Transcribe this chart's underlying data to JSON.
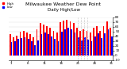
{
  "title": "Milwaukee Weather Dew Point",
  "subtitle": "Daily High/Low",
  "n_days": 31,
  "high_values": [
    45,
    38,
    42,
    50,
    52,
    48,
    44,
    38,
    55,
    68,
    65,
    62,
    58,
    52,
    48,
    70,
    73,
    75,
    72,
    68,
    58,
    52,
    55,
    52,
    48,
    58,
    62,
    52,
    62,
    72,
    58
  ],
  "low_values": [
    28,
    30,
    35,
    36,
    38,
    34,
    30,
    22,
    32,
    45,
    48,
    44,
    40,
    35,
    30,
    50,
    55,
    58,
    54,
    48,
    38,
    32,
    38,
    33,
    30,
    40,
    46,
    36,
    46,
    54,
    40
  ],
  "high_color": "#ff0000",
  "low_color": "#0000ff",
  "bg_color": "#ffffff",
  "plot_bg": "#ffffff",
  "ylim": [
    -10,
    80
  ],
  "yticks": [
    -10,
    0,
    10,
    20,
    30,
    40,
    50,
    60,
    70,
    80
  ],
  "ytick_labels": [
    "-10",
    "0",
    "10",
    "20",
    "30",
    "40",
    "50",
    "60",
    "70",
    "80"
  ],
  "title_fontsize": 4.5,
  "tick_fontsize": 3.0,
  "legend_high": "High",
  "legend_low": "Low",
  "dashed_lines": [
    20,
    21,
    22,
    23
  ]
}
